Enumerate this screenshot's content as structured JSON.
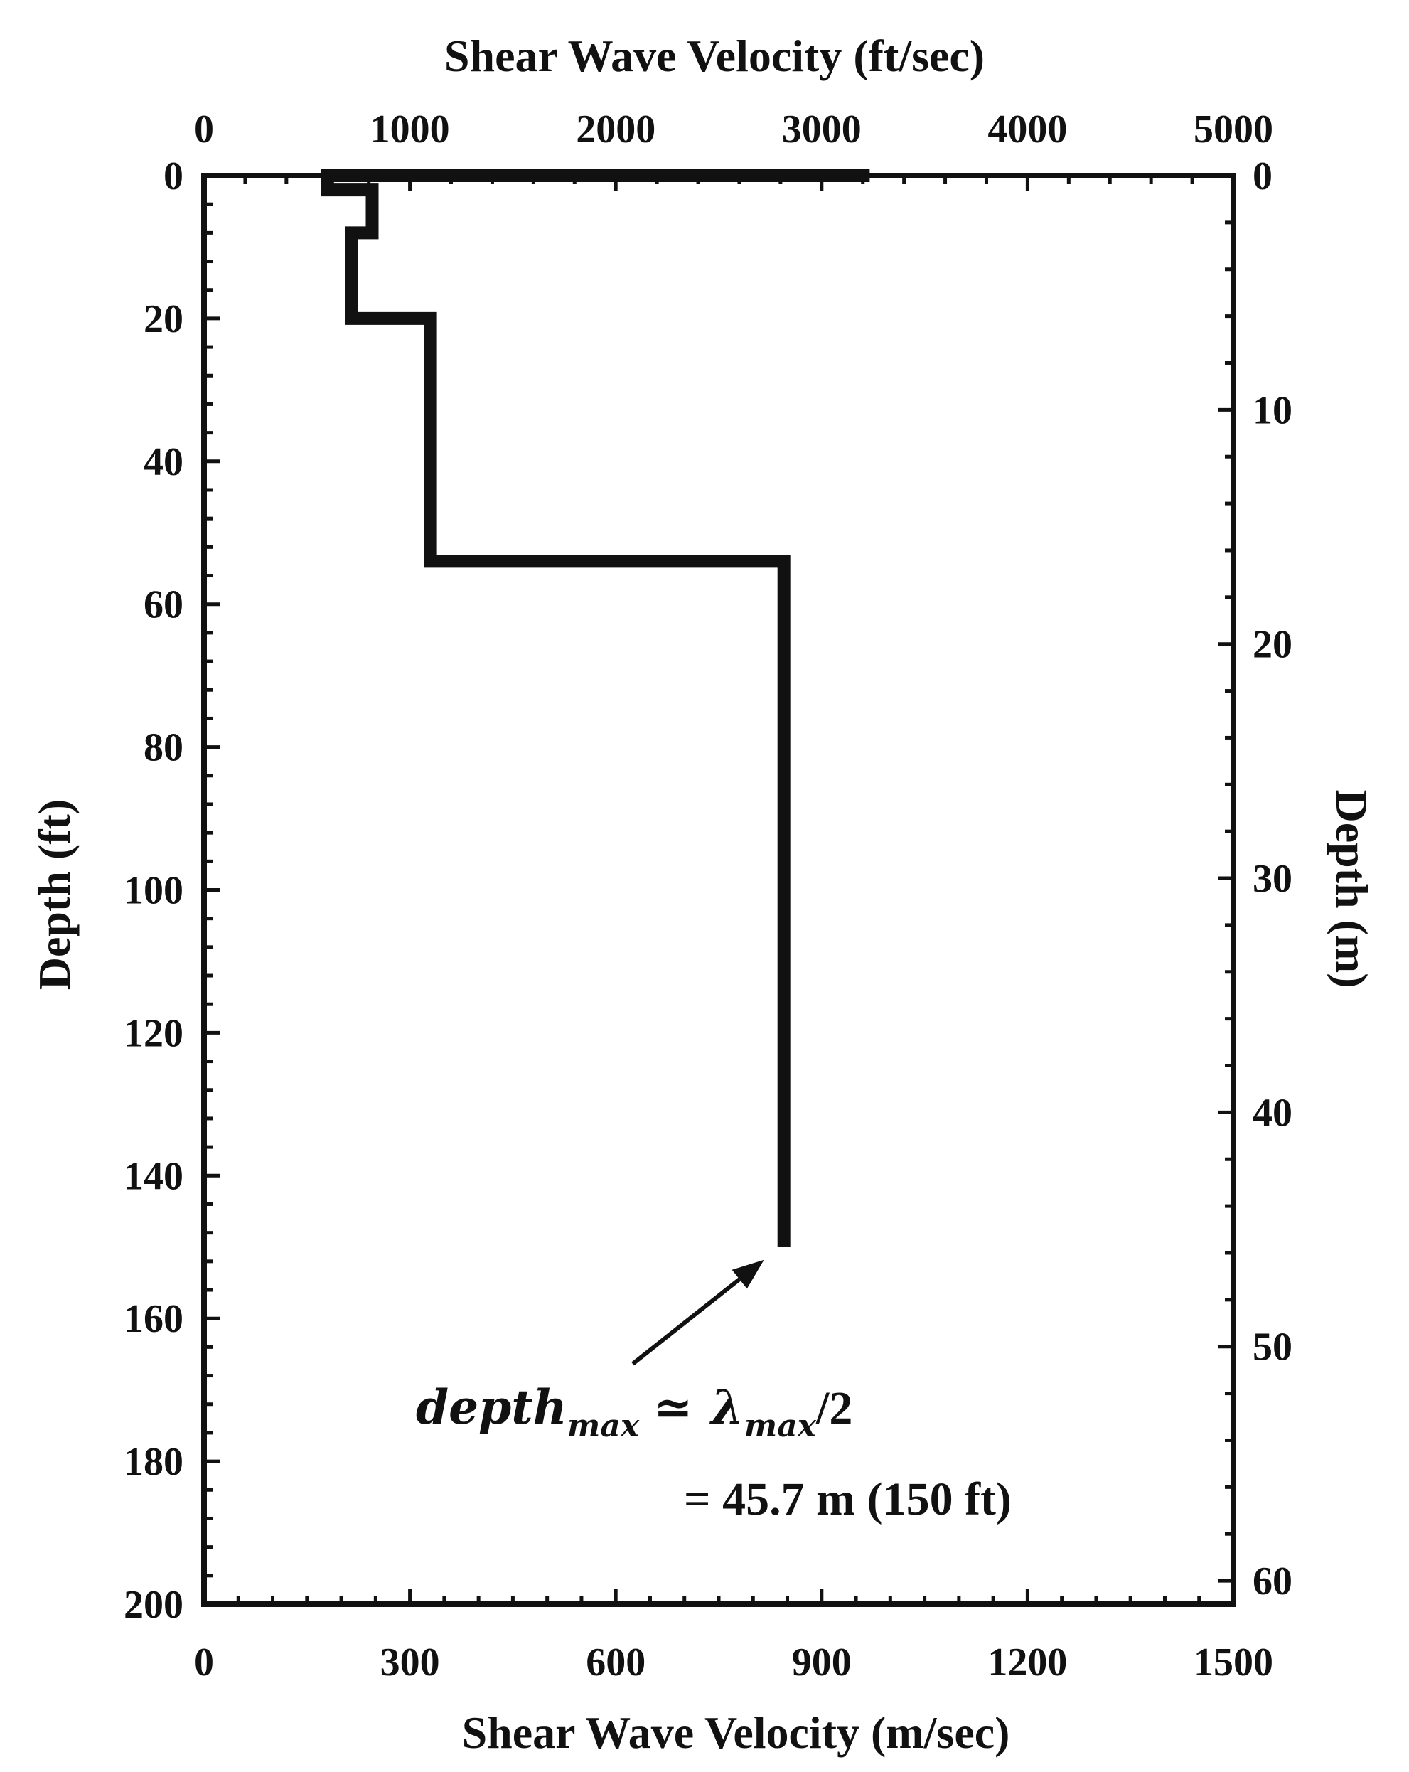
{
  "chart_data": {
    "type": "line",
    "top_axis": {
      "label": "Shear Wave Velocity (ft/sec)",
      "ticks": [
        "0",
        "1000",
        "2000",
        "3000",
        "4000",
        "5000"
      ],
      "range": [
        0,
        5000
      ]
    },
    "bottom_axis": {
      "label": "Shear Wave Velocity (m/sec)",
      "ticks": [
        "0",
        "300",
        "600",
        "900",
        "1200",
        "1500"
      ],
      "range": [
        0,
        1500
      ]
    },
    "left_axis": {
      "label": "Depth (ft)",
      "ticks": [
        "0",
        "20",
        "40",
        "60",
        "80",
        "100",
        "120",
        "140",
        "160",
        "180",
        "200"
      ],
      "range": [
        0,
        200
      ],
      "inverted": true
    },
    "right_axis": {
      "label": "Depth (m)",
      "ticks": [
        "0",
        "10",
        "20",
        "30",
        "40",
        "50",
        "60"
      ],
      "range": [
        0,
        61
      ],
      "inverted": true
    },
    "profile": {
      "x_units": "m/sec",
      "y_units": "ft",
      "points": [
        [
          970,
          0
        ],
        [
          180,
          0
        ],
        [
          180,
          2
        ],
        [
          245,
          2
        ],
        [
          245,
          8
        ],
        [
          215,
          8
        ],
        [
          215,
          20
        ],
        [
          330,
          20
        ],
        [
          330,
          54
        ],
        [
          845,
          54
        ],
        [
          845,
          150
        ]
      ]
    },
    "grid": false,
    "annotation": {
      "line1_base": "depth",
      "line1_sub": "max",
      "line1_op": "≃",
      "line1_lambda": "λ",
      "line1_lambda_sub": "max",
      "line1_tail": "/2",
      "line2": "= 45.7 m (150 ft)",
      "arrow_target": [
        845,
        150
      ]
    }
  }
}
